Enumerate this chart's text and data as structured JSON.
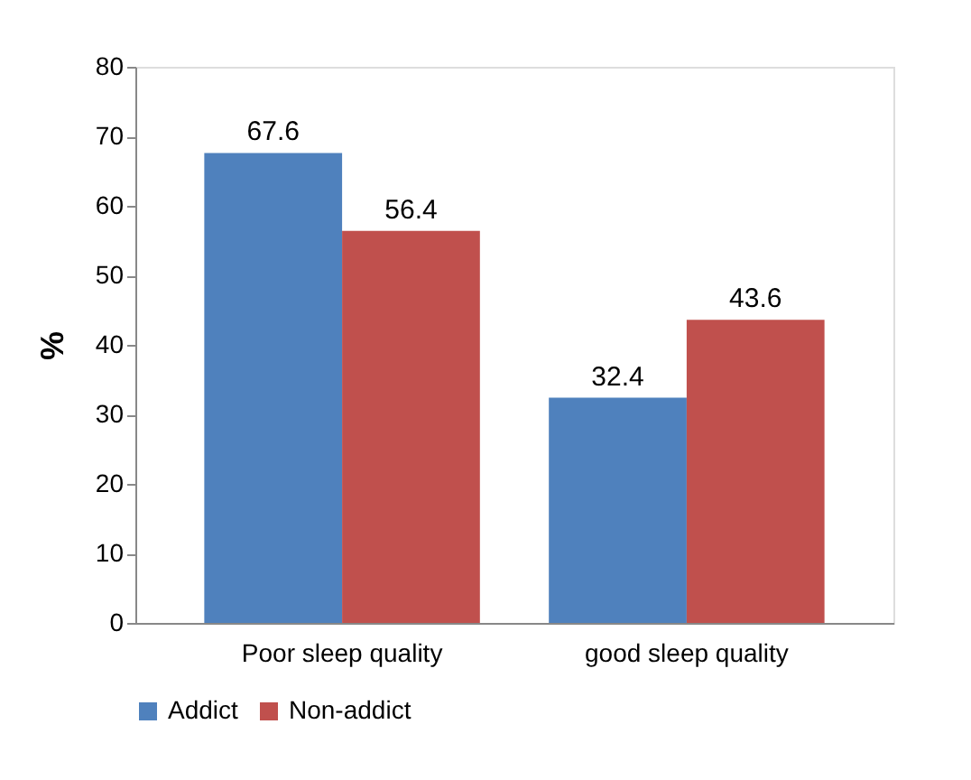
{
  "chart_data": {
    "type": "bar",
    "ylabel": "%",
    "categories": [
      "Poor sleep quality",
      "good sleep quality"
    ],
    "series": [
      {
        "name": "Addict",
        "color": "#4f81bd",
        "values": [
          67.6,
          32.4
        ]
      },
      {
        "name": "Non-addict",
        "color": "#c0504d",
        "values": [
          56.4,
          43.6
        ]
      }
    ],
    "ylim": [
      0,
      80
    ],
    "yticks": [
      0,
      10,
      20,
      30,
      40,
      50,
      60,
      70,
      80
    ],
    "data_labels": true,
    "grid": false,
    "legend": "bottom"
  }
}
